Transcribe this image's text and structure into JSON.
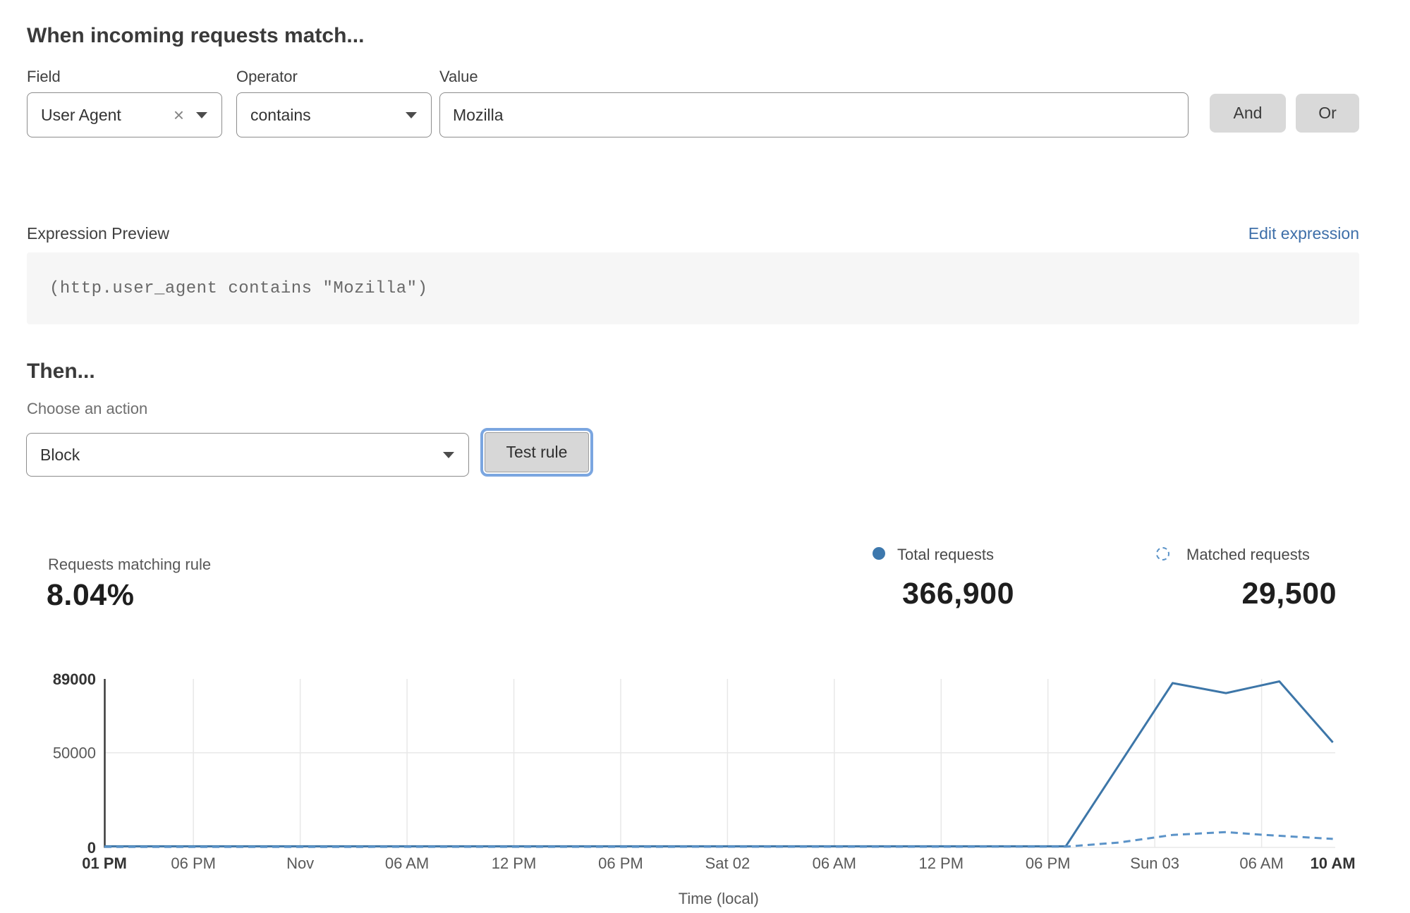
{
  "rule_builder": {
    "heading": "When incoming requests match...",
    "field": {
      "label": "Field",
      "value": "User Agent",
      "clear_icon": "×"
    },
    "operator": {
      "label": "Operator",
      "value": "contains"
    },
    "value": {
      "label": "Value",
      "value": "Mozilla"
    },
    "and_button": "And",
    "or_button": "Or"
  },
  "expression": {
    "preview_label": "Expression Preview",
    "edit_link": "Edit expression",
    "code": "(http.user_agent contains \"Mozilla\")"
  },
  "action": {
    "heading": "Then...",
    "choose_label": "Choose an action",
    "selected": "Block",
    "test_button": "Test rule"
  },
  "stats": {
    "matching_label": "Requests matching rule",
    "matching_value": "8.04%",
    "total_label": "Total requests",
    "total_value": "366,900",
    "matched_label": "Matched requests",
    "matched_value": "29,500"
  },
  "chart_data": {
    "type": "line",
    "title": "",
    "xlabel": "Time (local)",
    "ylabel": "",
    "ylim": [
      0,
      89000
    ],
    "grid": {
      "horizontal_gridlines_at": [
        0,
        50000
      ],
      "vertical_gridlines": "at interior x ticks"
    },
    "legend_position": "top-right above chart",
    "x_unit": "hours after Fri 01 PM (Oct 31)",
    "y_ticks": [
      {
        "v": 0,
        "label": "0",
        "bold": true
      },
      {
        "v": 50000,
        "label": "50000",
        "bold": false
      },
      {
        "v": 89000,
        "label": "89000",
        "bold": true
      }
    ],
    "x_ticks": [
      {
        "h": 0,
        "label": "01 PM",
        "bold": true
      },
      {
        "h": 5,
        "label": "06 PM",
        "bold": false
      },
      {
        "h": 11,
        "label": "Nov",
        "bold": false
      },
      {
        "h": 17,
        "label": "06 AM",
        "bold": false
      },
      {
        "h": 23,
        "label": "12 PM",
        "bold": false
      },
      {
        "h": 29,
        "label": "06 PM",
        "bold": false
      },
      {
        "h": 35,
        "label": "Sat 02",
        "bold": false
      },
      {
        "h": 41,
        "label": "06 AM",
        "bold": false
      },
      {
        "h": 47,
        "label": "12 PM",
        "bold": false
      },
      {
        "h": 53,
        "label": "06 PM",
        "bold": false
      },
      {
        "h": 59,
        "label": "Sun 03",
        "bold": false
      },
      {
        "h": 65,
        "label": "06 AM",
        "bold": false
      },
      {
        "h": 69,
        "label": "10 AM",
        "bold": true
      }
    ],
    "series": [
      {
        "name": "Total requests",
        "style": "solid",
        "color": "#3d76a8",
        "points": [
          [
            0,
            600
          ],
          [
            54,
            600
          ],
          [
            60,
            86800
          ],
          [
            63,
            81500
          ],
          [
            66,
            87700
          ],
          [
            69,
            55500
          ]
        ]
      },
      {
        "name": "Matched requests",
        "style": "dashed",
        "color": "#5b93c8",
        "points": [
          [
            0,
            250
          ],
          [
            54,
            400
          ],
          [
            57,
            2600
          ],
          [
            60,
            6600
          ],
          [
            63,
            8100
          ],
          [
            65,
            6700
          ],
          [
            67,
            5600
          ],
          [
            69,
            4500
          ]
        ]
      }
    ]
  },
  "colors": {
    "accent_blue": "#3d76a8",
    "dashed_blue": "#5b93c8",
    "link_blue": "#3e6fa9",
    "focus_ring": "#7ba6e0",
    "button_gray": "#d9d9d9",
    "code_bg": "#f6f6f6"
  }
}
